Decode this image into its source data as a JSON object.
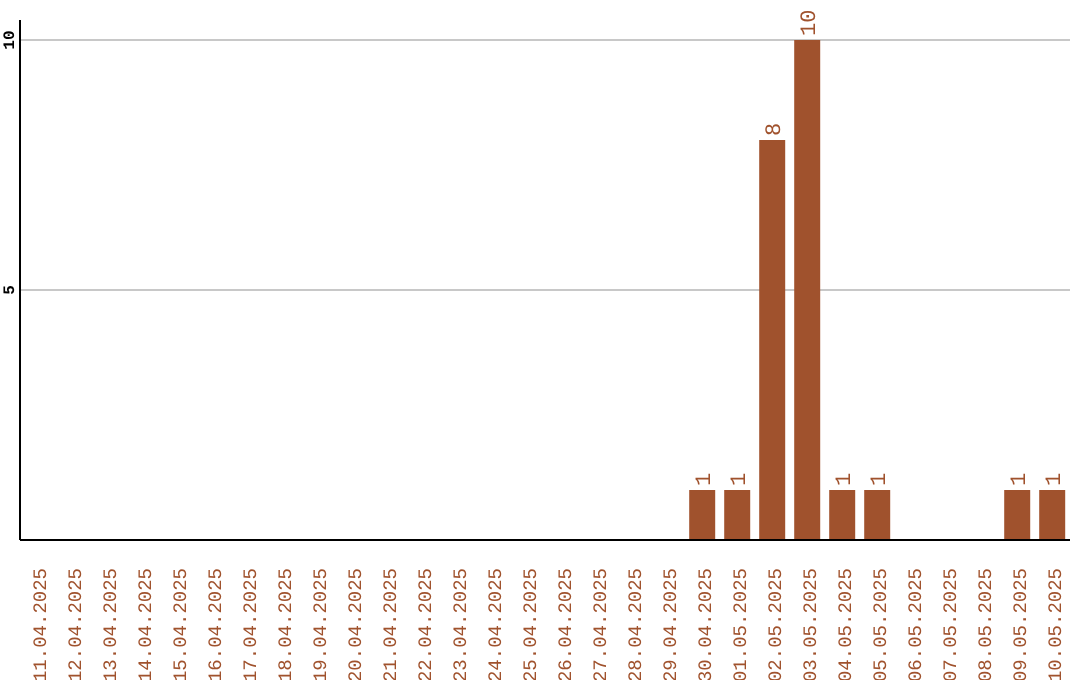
{
  "chart_data": {
    "type": "bar",
    "categories": [
      "11.04.2025",
      "12.04.2025",
      "13.04.2025",
      "14.04.2025",
      "15.04.2025",
      "16.04.2025",
      "17.04.2025",
      "18.04.2025",
      "19.04.2025",
      "20.04.2025",
      "21.04.2025",
      "22.04.2025",
      "23.04.2025",
      "24.04.2025",
      "25.04.2025",
      "26.04.2025",
      "27.04.2025",
      "28.04.2025",
      "29.04.2025",
      "30.04.2025",
      "01.05.2025",
      "02.05.2025",
      "03.05.2025",
      "04.05.2025",
      "05.05.2025",
      "06.05.2025",
      "07.05.2025",
      "08.05.2025",
      "09.05.2025",
      "10.05.2025"
    ],
    "values": [
      0,
      0,
      0,
      0,
      0,
      0,
      0,
      0,
      0,
      0,
      0,
      0,
      0,
      0,
      0,
      0,
      0,
      0,
      0,
      1,
      1,
      8,
      10,
      1,
      1,
      0,
      0,
      0,
      1,
      1
    ],
    "value_labels": [
      null,
      null,
      null,
      null,
      null,
      null,
      null,
      null,
      null,
      null,
      null,
      null,
      null,
      null,
      null,
      null,
      null,
      null,
      null,
      "1",
      "1",
      "8",
      "10",
      "1",
      "1",
      null,
      null,
      null,
      "1",
      "1"
    ],
    "color": "#a0522d",
    "ylim": [
      0,
      10.4
    ],
    "yticks": [
      {
        "value": 0,
        "label": null
      },
      5,
      10
    ],
    "grid": "y"
  }
}
